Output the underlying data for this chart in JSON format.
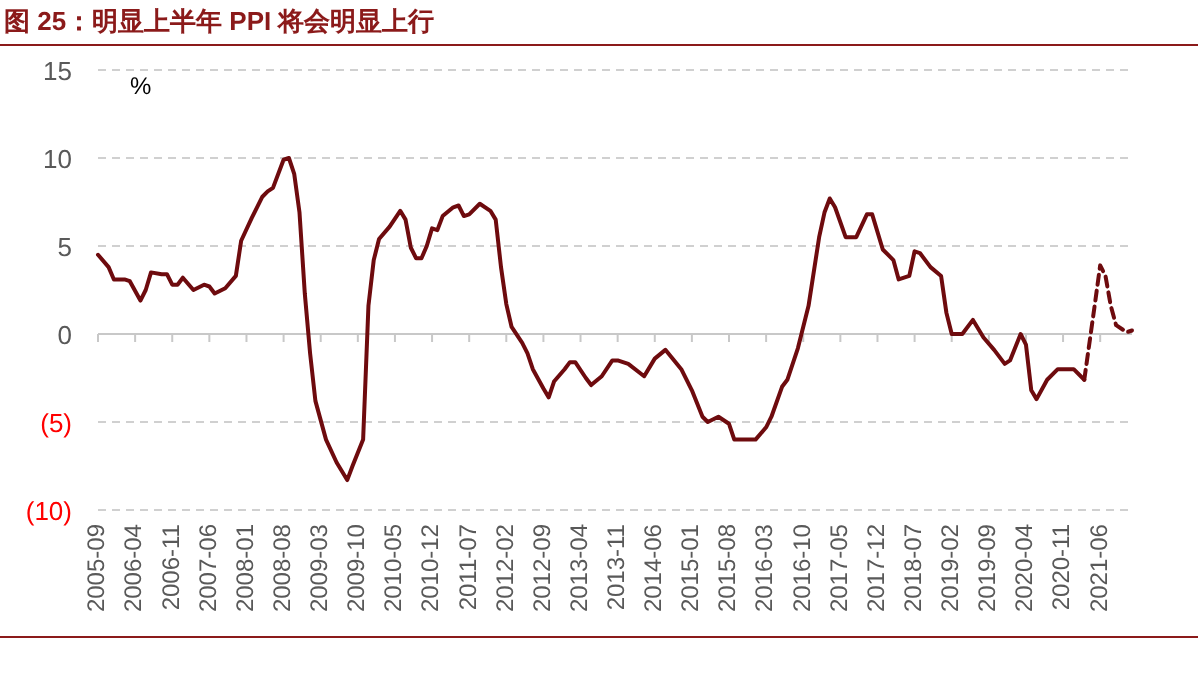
{
  "chart_data": {
    "type": "line",
    "title": "图 25：明显上半年 PPI 将会明显上行",
    "ylabel": "%",
    "xlim": [
      "2005-09",
      "2021-12"
    ],
    "xticks": [
      "2005-09",
      "2006-04",
      "2006-11",
      "2007-06",
      "2008-01",
      "2008-08",
      "2009-03",
      "2009-10",
      "2010-05",
      "2010-12",
      "2011-07",
      "2012-02",
      "2012-09",
      "2013-04",
      "2013-11",
      "2014-06",
      "2015-01",
      "2015-08",
      "2016-03",
      "2016-10",
      "2017-05",
      "2017-12",
      "2018-07",
      "2019-02",
      "2019-09",
      "2020-04",
      "2020-11",
      "2021-06"
    ],
    "ylim": [
      -10,
      15
    ],
    "yticks": [
      15,
      10,
      5,
      0,
      {
        "value": -5,
        "label": "(5)"
      },
      {
        "value": -10,
        "label": "(10)"
      }
    ],
    "grid": "y",
    "series": [
      {
        "color": "#6e0b0e",
        "line_style": "solid",
        "x": [
          "2005-09",
          "2005-11",
          "2005-12",
          "2006-02",
          "2006-03",
          "2006-05",
          "2006-06",
          "2006-07",
          "2006-09",
          "2006-10",
          "2006-11",
          "2006-12",
          "2007-01",
          "2007-03",
          "2007-05",
          "2007-06",
          "2007-07",
          "2007-09",
          "2007-11",
          "2007-12",
          "2008-02",
          "2008-04",
          "2008-05",
          "2008-06",
          "2008-08",
          "2008-09",
          "2008-10",
          "2008-11",
          "2008-12",
          "2009-01",
          "2009-02",
          "2009-04",
          "2009-06",
          "2009-08",
          "2009-09",
          "2009-11",
          "2009-12",
          "2010-01",
          "2010-02",
          "2010-04",
          "2010-06",
          "2010-07",
          "2010-08",
          "2010-09",
          "2010-10",
          "2010-11",
          "2010-12",
          "2011-01",
          "2011-02",
          "2011-04",
          "2011-05",
          "2011-06",
          "2011-07",
          "2011-09",
          "2011-11",
          "2011-12",
          "2012-01",
          "2012-02",
          "2012-03",
          "2012-05",
          "2012-06",
          "2012-07",
          "2012-09",
          "2012-10",
          "2012-11",
          "2013-01",
          "2013-02",
          "2013-03",
          "2013-05",
          "2013-06",
          "2013-08",
          "2013-10",
          "2013-11",
          "2014-01",
          "2014-04",
          "2014-06",
          "2014-08",
          "2014-11",
          "2015-01",
          "2015-03",
          "2015-04",
          "2015-06",
          "2015-08",
          "2015-09",
          "2016-01",
          "2016-03",
          "2016-04",
          "2016-06",
          "2016-07",
          "2016-09",
          "2016-11",
          "2017-01",
          "2017-02",
          "2017-03",
          "2017-04",
          "2017-06",
          "2017-08",
          "2017-10",
          "2017-11",
          "2018-01",
          "2018-03",
          "2018-04",
          "2018-06",
          "2018-07",
          "2018-08",
          "2018-10",
          "2018-12",
          "2019-01",
          "2019-02",
          "2019-04",
          "2019-06",
          "2019-08",
          "2019-10",
          "2019-12",
          "2020-01",
          "2020-03",
          "2020-04",
          "2020-05",
          "2020-06",
          "2020-08",
          "2020-10",
          "2020-12",
          "2021-01",
          "2021-03"
        ],
        "values": [
          4.5,
          3.8,
          3.1,
          3.1,
          3.0,
          1.9,
          2.5,
          3.5,
          3.4,
          3.4,
          2.8,
          2.8,
          3.2,
          2.5,
          2.8,
          2.7,
          2.3,
          2.6,
          3.3,
          5.3,
          6.6,
          7.8,
          8.1,
          8.3,
          9.9,
          10.0,
          9.1,
          6.9,
          2.3,
          -1.1,
          -3.8,
          -6.0,
          -7.3,
          -8.3,
          -7.5,
          -6.0,
          1.6,
          4.2,
          5.4,
          6.1,
          7.0,
          6.5,
          4.9,
          4.3,
          4.3,
          5.0,
          6.0,
          5.9,
          6.7,
          7.2,
          7.3,
          6.7,
          6.8,
          7.4,
          7.0,
          6.5,
          3.8,
          1.7,
          0.4,
          -0.5,
          -1.1,
          -2.0,
          -3.1,
          -3.6,
          -2.7,
          -2.0,
          -1.6,
          -1.6,
          -2.5,
          -2.9,
          -2.4,
          -1.5,
          -1.5,
          -1.7,
          -2.4,
          -1.4,
          -0.9,
          -2.0,
          -3.2,
          -4.7,
          -5.0,
          -4.7,
          -5.1,
          -6.0,
          -6.0,
          -5.3,
          -4.7,
          -3.0,
          -2.6,
          -0.8,
          1.6,
          5.5,
          6.9,
          7.7,
          7.2,
          5.5,
          5.5,
          6.8,
          6.8,
          4.8,
          4.2,
          3.1,
          3.3,
          4.7,
          4.6,
          3.8,
          3.3,
          1.2,
          0.0,
          0.0,
          0.8,
          -0.2,
          -0.9,
          -1.7,
          -1.5,
          0.0,
          -0.6,
          -3.2,
          -3.7,
          -2.6,
          -2.0,
          -2.0,
          -2.0,
          -2.6
        ]
      },
      {
        "color": "#6e0b0e",
        "line_style": "dashed",
        "x": [
          "2021-03",
          "2021-05",
          "2021-06",
          "2021-07",
          "2021-08",
          "2021-09",
          "2021-11",
          "2021-12"
        ],
        "values": [
          -2.6,
          1.7,
          3.9,
          3.3,
          1.6,
          0.5,
          0.1,
          0.2
        ]
      }
    ]
  }
}
